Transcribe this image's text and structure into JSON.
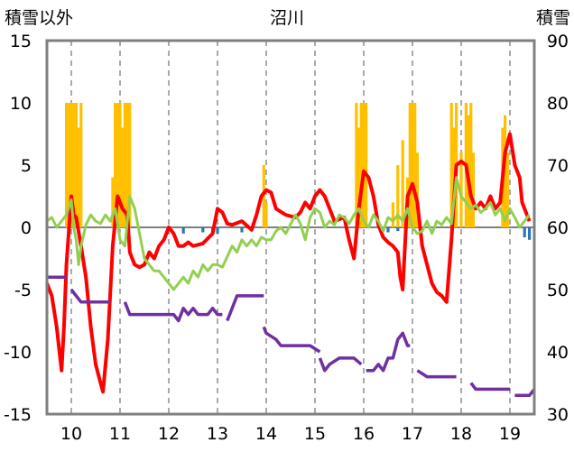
{
  "chart_data": {
    "type": "bar+line",
    "title": "沼川",
    "left_axis_label": "積雪以外",
    "right_axis_label": "積雪",
    "left_ylim": [
      -15,
      15
    ],
    "left_ticks": [
      "15",
      "10",
      "5",
      "0",
      "-5",
      "-10",
      "-15"
    ],
    "right_ylim": [
      30,
      90
    ],
    "right_ticks": [
      "90",
      "80",
      "70",
      "60",
      "50",
      "40",
      "30"
    ],
    "x_range": [
      9.5,
      19.5
    ],
    "x_ticks": [
      "10",
      "11",
      "12",
      "13",
      "14",
      "15",
      "16",
      "17",
      "18",
      "19"
    ],
    "grid": "vertical-dashed-and-zero-line",
    "bars_positive": [
      {
        "x": 9.9,
        "y": 10
      },
      {
        "x": 9.95,
        "y": 10
      },
      {
        "x": 10.0,
        "y": 10
      },
      {
        "x": 10.05,
        "y": 10
      },
      {
        "x": 10.1,
        "y": 10
      },
      {
        "x": 10.15,
        "y": 8
      },
      {
        "x": 10.2,
        "y": 10
      },
      {
        "x": 10.85,
        "y": 4
      },
      {
        "x": 10.9,
        "y": 10
      },
      {
        "x": 10.95,
        "y": 10
      },
      {
        "x": 11.0,
        "y": 10
      },
      {
        "x": 11.05,
        "y": 8
      },
      {
        "x": 11.1,
        "y": 10
      },
      {
        "x": 11.15,
        "y": 10
      },
      {
        "x": 11.2,
        "y": 10
      },
      {
        "x": 13.95,
        "y": 5
      },
      {
        "x": 14.0,
        "y": 2
      },
      {
        "x": 15.85,
        "y": 10
      },
      {
        "x": 15.9,
        "y": 8
      },
      {
        "x": 15.95,
        "y": 10
      },
      {
        "x": 16.0,
        "y": 10
      },
      {
        "x": 16.05,
        "y": 10
      },
      {
        "x": 16.6,
        "y": 2
      },
      {
        "x": 16.7,
        "y": 5
      },
      {
        "x": 16.8,
        "y": 7
      },
      {
        "x": 16.9,
        "y": 4
      },
      {
        "x": 16.95,
        "y": 10
      },
      {
        "x": 17.0,
        "y": 10
      },
      {
        "x": 17.05,
        "y": 10
      },
      {
        "x": 17.1,
        "y": 6
      },
      {
        "x": 17.8,
        "y": 10
      },
      {
        "x": 17.85,
        "y": 8
      },
      {
        "x": 17.9,
        "y": 10
      },
      {
        "x": 18.0,
        "y": 6
      },
      {
        "x": 18.1,
        "y": 10
      },
      {
        "x": 18.15,
        "y": 9
      },
      {
        "x": 18.2,
        "y": 10
      },
      {
        "x": 18.25,
        "y": 6
      },
      {
        "x": 18.85,
        "y": 8
      },
      {
        "x": 18.9,
        "y": 9
      },
      {
        "x": 18.95,
        "y": 6
      }
    ],
    "bars_negative": [
      {
        "x": 12.3,
        "y": -0.5
      },
      {
        "x": 12.7,
        "y": -0.4
      },
      {
        "x": 12.9,
        "y": -0.4
      },
      {
        "x": 13.0,
        "y": -0.5
      },
      {
        "x": 13.5,
        "y": -0.4
      },
      {
        "x": 13.7,
        "y": -0.3
      },
      {
        "x": 16.5,
        "y": -0.4
      },
      {
        "x": 16.7,
        "y": -0.3
      },
      {
        "x": 19.3,
        "y": -0.8
      },
      {
        "x": 19.4,
        "y": -1.0
      }
    ],
    "series": [
      {
        "color": "#ff0000",
        "axis": "left",
        "points": [
          [
            9.5,
            -4.5
          ],
          [
            9.6,
            -5.5
          ],
          [
            9.7,
            -8
          ],
          [
            9.8,
            -11.5
          ],
          [
            9.85,
            -8
          ],
          [
            9.9,
            -3
          ],
          [
            10.0,
            2.5
          ],
          [
            10.05,
            1
          ],
          [
            10.1,
            0.8
          ],
          [
            10.2,
            -1.5
          ],
          [
            10.3,
            -4
          ],
          [
            10.4,
            -8
          ],
          [
            10.5,
            -11
          ],
          [
            10.6,
            -12.5
          ],
          [
            10.65,
            -13.2
          ],
          [
            10.75,
            -9
          ],
          [
            10.85,
            -1.5
          ],
          [
            10.95,
            2.5
          ],
          [
            11.05,
            1.5
          ],
          [
            11.15,
            1
          ],
          [
            11.2,
            -2
          ],
          [
            11.3,
            -3
          ],
          [
            11.4,
            -3.2
          ],
          [
            11.5,
            -3
          ],
          [
            11.6,
            -2
          ],
          [
            11.7,
            -2.5
          ],
          [
            11.8,
            -1.5
          ],
          [
            11.9,
            -1
          ],
          [
            12.0,
            0
          ],
          [
            12.1,
            -0.5
          ],
          [
            12.2,
            -1.5
          ],
          [
            12.3,
            -1.5
          ],
          [
            12.4,
            -1.2
          ],
          [
            12.5,
            -1.5
          ],
          [
            12.7,
            -1.3
          ],
          [
            12.9,
            -0.5
          ],
          [
            13.0,
            1.5
          ],
          [
            13.1,
            1.2
          ],
          [
            13.2,
            0.3
          ],
          [
            13.3,
            0.2
          ],
          [
            13.5,
            0.5
          ],
          [
            13.7,
            -0.2
          ],
          [
            13.8,
            1
          ],
          [
            13.9,
            2.5
          ],
          [
            14.0,
            3
          ],
          [
            14.1,
            2.8
          ],
          [
            14.2,
            1.5
          ],
          [
            14.4,
            1
          ],
          [
            14.6,
            0.8
          ],
          [
            14.7,
            1.2
          ],
          [
            14.8,
            2
          ],
          [
            14.9,
            1.5
          ],
          [
            15.0,
            2.5
          ],
          [
            15.1,
            3
          ],
          [
            15.2,
            2.5
          ],
          [
            15.3,
            1.5
          ],
          [
            15.4,
            0.5
          ],
          [
            15.6,
            0.8
          ],
          [
            15.7,
            -1
          ],
          [
            15.8,
            -2.5
          ],
          [
            15.9,
            1.5
          ],
          [
            16.0,
            4.5
          ],
          [
            16.1,
            4
          ],
          [
            16.2,
            2.5
          ],
          [
            16.3,
            0.2
          ],
          [
            16.4,
            -0.8
          ],
          [
            16.5,
            -1.2
          ],
          [
            16.6,
            -1.5
          ],
          [
            16.7,
            -2
          ],
          [
            16.75,
            -4
          ],
          [
            16.8,
            -5
          ],
          [
            16.9,
            2.5
          ],
          [
            17.0,
            3.5
          ],
          [
            17.1,
            2
          ],
          [
            17.2,
            -1.5
          ],
          [
            17.3,
            -3
          ],
          [
            17.4,
            -4.5
          ],
          [
            17.5,
            -5.2
          ],
          [
            17.6,
            -5.5
          ],
          [
            17.7,
            -6
          ],
          [
            17.8,
            -1
          ],
          [
            17.9,
            5
          ],
          [
            18.0,
            5.3
          ],
          [
            18.1,
            5
          ],
          [
            18.2,
            2.5
          ],
          [
            18.3,
            1.5
          ],
          [
            18.4,
            2
          ],
          [
            18.5,
            1.5
          ],
          [
            18.6,
            2.5
          ],
          [
            18.7,
            1.5
          ],
          [
            18.8,
            2
          ],
          [
            18.9,
            6
          ],
          [
            19.0,
            7.5
          ],
          [
            19.1,
            5
          ],
          [
            19.2,
            4
          ],
          [
            19.25,
            2
          ],
          [
            19.35,
            1
          ],
          [
            19.4,
            0.5
          ]
        ]
      },
      {
        "color": "#92d050",
        "axis": "left",
        "points": [
          [
            9.5,
            0.5
          ],
          [
            9.6,
            0.8
          ],
          [
            9.7,
            0
          ],
          [
            9.8,
            0.5
          ],
          [
            9.9,
            1
          ],
          [
            10.0,
            2.2
          ],
          [
            10.05,
            0
          ],
          [
            10.1,
            -1
          ],
          [
            10.15,
            -3
          ],
          [
            10.2,
            -1.5
          ],
          [
            10.3,
            0.2
          ],
          [
            10.4,
            1
          ],
          [
            10.5,
            0.5
          ],
          [
            10.6,
            0.3
          ],
          [
            10.7,
            1
          ],
          [
            10.8,
            0.5
          ],
          [
            10.9,
            1.5
          ],
          [
            11.0,
            -1
          ],
          [
            11.1,
            -1.5
          ],
          [
            11.2,
            2.5
          ],
          [
            11.3,
            1.5
          ],
          [
            11.4,
            -0.5
          ],
          [
            11.5,
            -2.5
          ],
          [
            11.6,
            -3
          ],
          [
            11.7,
            -3.5
          ],
          [
            11.8,
            -3.5
          ],
          [
            11.9,
            -4
          ],
          [
            12.0,
            -4.5
          ],
          [
            12.1,
            -5
          ],
          [
            12.2,
            -4.5
          ],
          [
            12.3,
            -4
          ],
          [
            12.4,
            -4.5
          ],
          [
            12.5,
            -3.5
          ],
          [
            12.6,
            -4
          ],
          [
            12.7,
            -3
          ],
          [
            12.8,
            -3.5
          ],
          [
            12.9,
            -3
          ],
          [
            13.0,
            -3
          ],
          [
            13.1,
            -3.2
          ],
          [
            13.3,
            -1.5
          ],
          [
            13.4,
            -2
          ],
          [
            13.5,
            -1
          ],
          [
            13.6,
            -1.5
          ],
          [
            13.7,
            -1
          ],
          [
            13.8,
            -1.5
          ],
          [
            13.9,
            -0.8
          ],
          [
            14.0,
            -1
          ],
          [
            14.1,
            -1
          ],
          [
            14.2,
            -0.3
          ],
          [
            14.3,
            0
          ],
          [
            14.4,
            -0.5
          ],
          [
            14.6,
            1
          ],
          [
            14.7,
            0.3
          ],
          [
            14.8,
            -1
          ],
          [
            14.9,
            0.8
          ],
          [
            15.0,
            1.5
          ],
          [
            15.1,
            1.2
          ],
          [
            15.2,
            0
          ],
          [
            15.3,
            0.5
          ],
          [
            15.4,
            0.2
          ],
          [
            15.5,
            1
          ],
          [
            15.6,
            0.8
          ],
          [
            15.7,
            0.3
          ],
          [
            15.8,
            1
          ],
          [
            15.9,
            1.5
          ],
          [
            16.0,
            0.5
          ],
          [
            16.1,
            0
          ],
          [
            16.2,
            1
          ],
          [
            16.3,
            0.5
          ],
          [
            16.4,
            -0.3
          ],
          [
            16.5,
            0.8
          ],
          [
            16.6,
            0.5
          ],
          [
            16.7,
            1
          ],
          [
            16.8,
            0.5
          ],
          [
            16.9,
            1.5
          ],
          [
            17.0,
            0
          ],
          [
            17.1,
            -0.5
          ],
          [
            17.2,
            -0.3
          ],
          [
            17.3,
            0.5
          ],
          [
            17.4,
            -0.5
          ],
          [
            17.5,
            0.5
          ],
          [
            17.6,
            0.2
          ],
          [
            17.7,
            0.8
          ],
          [
            17.8,
            0.3
          ],
          [
            17.9,
            4
          ],
          [
            18.0,
            2.5
          ],
          [
            18.1,
            2
          ],
          [
            18.2,
            1.5
          ],
          [
            18.3,
            1.8
          ],
          [
            18.4,
            1.2
          ],
          [
            18.5,
            1.5
          ],
          [
            18.6,
            2
          ],
          [
            18.7,
            1
          ],
          [
            18.8,
            1.5
          ],
          [
            18.9,
            0.5
          ],
          [
            19.0,
            1.5
          ],
          [
            19.1,
            0.8
          ],
          [
            19.2,
            0
          ],
          [
            19.3,
            0.5
          ],
          [
            19.4,
            1
          ]
        ]
      }
    ],
    "series_right": [
      {
        "color": "#7030a0",
        "axis": "right",
        "segments": [
          [
            [
              9.5,
              52
            ],
            [
              9.9,
              52
            ]
          ],
          [
            [
              10.0,
              50
            ],
            [
              10.2,
              48
            ],
            [
              10.8,
              48
            ]
          ],
          [
            [
              11.1,
              48
            ],
            [
              11.2,
              46
            ],
            [
              11.8,
              46
            ],
            [
              11.9,
              46
            ],
            [
              12.1,
              46
            ],
            [
              12.2,
              45
            ],
            [
              12.3,
              47
            ],
            [
              12.4,
              46
            ],
            [
              12.5,
              47
            ],
            [
              12.6,
              46
            ],
            [
              12.7,
              46
            ],
            [
              12.8,
              46
            ],
            [
              12.9,
              47
            ],
            [
              13.0,
              46
            ],
            [
              13.1,
              46
            ]
          ],
          [
            [
              13.2,
              45
            ],
            [
              13.3,
              47
            ],
            [
              13.4,
              49
            ],
            [
              13.5,
              49
            ],
            [
              13.7,
              49
            ],
            [
              13.95,
              49
            ]
          ],
          [
            [
              13.95,
              44
            ],
            [
              14.0,
              43
            ],
            [
              14.2,
              42
            ],
            [
              14.3,
              41
            ],
            [
              14.9,
              41
            ],
            [
              15.1,
              40
            ]
          ],
          [
            [
              15.1,
              39
            ],
            [
              15.2,
              37
            ],
            [
              15.3,
              38
            ],
            [
              15.5,
              39
            ],
            [
              15.8,
              39
            ],
            [
              15.95,
              38
            ]
          ],
          [
            [
              16.05,
              37
            ],
            [
              16.2,
              37
            ],
            [
              16.3,
              38
            ],
            [
              16.4,
              37
            ],
            [
              16.5,
              39
            ],
            [
              16.6,
              39
            ],
            [
              16.7,
              42
            ],
            [
              16.8,
              43
            ],
            [
              16.9,
              41
            ],
            [
              16.95,
              41
            ]
          ],
          [
            [
              17.1,
              37
            ],
            [
              17.3,
              36
            ],
            [
              17.9,
              36
            ]
          ],
          [
            [
              18.2,
              35
            ],
            [
              18.3,
              34
            ],
            [
              19.0,
              34
            ]
          ],
          [
            [
              19.1,
              33
            ],
            [
              19.2,
              33
            ],
            [
              19.4,
              33
            ],
            [
              19.5,
              34
            ]
          ]
        ]
      }
    ]
  }
}
